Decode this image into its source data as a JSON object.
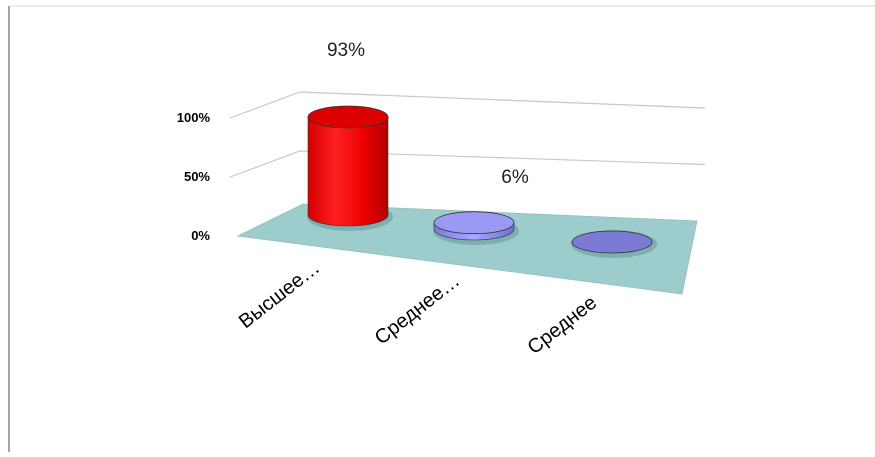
{
  "chart_data": {
    "type": "bar",
    "style": "3d-cylinder",
    "categories": [
      "Высшее…",
      "Среднее…",
      "Среднее"
    ],
    "values": [
      93,
      6,
      0
    ],
    "data_labels": [
      "93%",
      "6%",
      ""
    ],
    "y_ticks": [
      "0%",
      "50%",
      "100%"
    ],
    "ylim": [
      0,
      100
    ],
    "grid": true,
    "legend": "none",
    "colors": {
      "bars": [
        "#ff0000",
        "#8c8cf0",
        "#7b7bd6"
      ],
      "floor": "#9ccccc",
      "grid": "#c8c8c8"
    }
  }
}
